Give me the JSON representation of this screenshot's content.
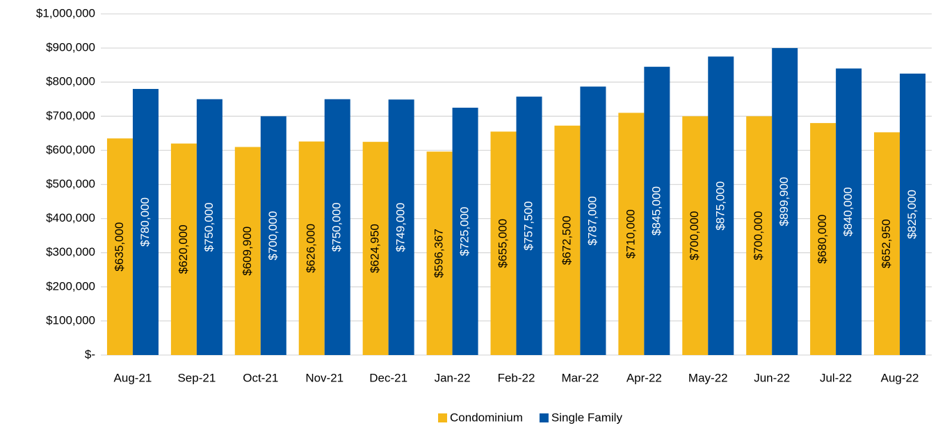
{
  "chart_data": {
    "type": "bar",
    "categories": [
      "Aug-21",
      "Sep-21",
      "Oct-21",
      "Nov-21",
      "Dec-21",
      "Jan-22",
      "Feb-22",
      "Mar-22",
      "Apr-22",
      "May-22",
      "Jun-22",
      "Jul-22",
      "Aug-22"
    ],
    "series": [
      {
        "name": "Condominium",
        "color": "#f5b819",
        "values": [
          635000,
          620000,
          609900,
          626000,
          624950,
          596367,
          655000,
          672500,
          710000,
          700000,
          700000,
          680000,
          652950
        ],
        "value_labels": [
          "$635,000",
          "$620,000",
          "$609,900",
          "$626,000",
          "$624,950",
          "$596,367",
          "$655,000",
          "$672,500",
          "$710,000",
          "$700,000",
          "$700,000",
          "$680,000",
          "$652,950"
        ]
      },
      {
        "name": "Single Family",
        "color": "#0055a5",
        "values": [
          780000,
          750000,
          700000,
          750000,
          749000,
          725000,
          757500,
          787000,
          845000,
          875000,
          899900,
          840000,
          825000
        ],
        "value_labels": [
          "$780,000",
          "$750,000",
          "$700,000",
          "$750,000",
          "$749,000",
          "$725,000",
          "$757,500",
          "$787,000",
          "$845,000",
          "$875,000",
          "$899,900",
          "$840,000",
          "$825,000"
        ]
      }
    ],
    "ylim": [
      0,
      1000000
    ],
    "yticks": [
      {
        "value": 0,
        "label": "$-"
      },
      {
        "value": 100000,
        "label": "$100,000"
      },
      {
        "value": 200000,
        "label": "$200,000"
      },
      {
        "value": 300000,
        "label": "$300,000"
      },
      {
        "value": 400000,
        "label": "$400,000"
      },
      {
        "value": 500000,
        "label": "$500,000"
      },
      {
        "value": 600000,
        "label": "$600,000"
      },
      {
        "value": 700000,
        "label": "$700,000"
      },
      {
        "value": 800000,
        "label": "$800,000"
      },
      {
        "value": 900000,
        "label": "$900,000"
      },
      {
        "value": 1000000,
        "label": "$1,000,000"
      }
    ],
    "grid": true,
    "legend": "bottom"
  }
}
